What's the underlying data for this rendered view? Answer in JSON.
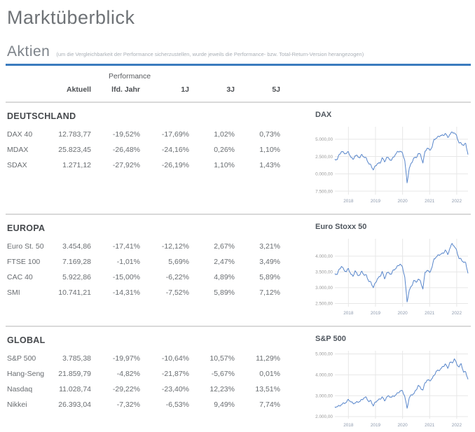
{
  "page": {
    "title": "Marktüberblick",
    "section_title": "Aktien",
    "section_note": "(um die Vergleichbarkeit der Performance sicherzustellen, wurde jeweils die Performance- bzw. Total-Return-Version herangezogen)"
  },
  "colors": {
    "accent_blue": "#3b7bbe",
    "line_blue": "#5886cb",
    "grid_line": "#e7e7e7",
    "y_label": "#9b9b9b",
    "x_label": "#8d99ad"
  },
  "table": {
    "header": {
      "performance": "Performance",
      "aktuell": "Aktuell",
      "lfd_jahr": "lfd. Jahr",
      "j1": "1J",
      "j3": "3J",
      "j5": "5J"
    },
    "sections": [
      {
        "title": "DEUTSCHLAND",
        "rows": [
          {
            "name": "DAX 40",
            "aktuell": "12.783,77",
            "lfd_jahr": "-19,52%",
            "j1": "-17,69%",
            "j3": "1,02%",
            "j5": "0,73%"
          },
          {
            "name": "MDAX",
            "aktuell": "25.823,45",
            "lfd_jahr": "-26,48%",
            "j1": "-24,16%",
            "j3": "0,26%",
            "j5": "1,10%"
          },
          {
            "name": "SDAX",
            "aktuell": "1.271,12",
            "lfd_jahr": "-27,92%",
            "j1": "-26,19%",
            "j3": "1,10%",
            "j5": "1,43%"
          }
        ]
      },
      {
        "title": "EUROPA",
        "rows": [
          {
            "name": "Euro St. 50",
            "aktuell": "3.454,86",
            "lfd_jahr": "-17,41%",
            "j1": "-12,12%",
            "j3": "2,67%",
            "j5": "3,21%"
          },
          {
            "name": "FTSE 100",
            "aktuell": "7.169,28",
            "lfd_jahr": "-1,01%",
            "j1": "5,69%",
            "j3": "2,47%",
            "j5": "3,49%"
          },
          {
            "name": "CAC 40",
            "aktuell": "5.922,86",
            "lfd_jahr": "-15,00%",
            "j1": "-6,22%",
            "j3": "4,89%",
            "j5": "5,89%"
          },
          {
            "name": "SMI",
            "aktuell": "10.741,21",
            "lfd_jahr": "-14,31%",
            "j1": "-7,52%",
            "j3": "5,89%",
            "j5": "7,12%"
          }
        ]
      },
      {
        "title": "GLOBAL",
        "rows": [
          {
            "name": "S&P 500",
            "aktuell": "3.785,38",
            "lfd_jahr": "-19,97%",
            "j1": "-10,64%",
            "j3": "10,57%",
            "j5": "11,29%"
          },
          {
            "name": "Hang-Seng",
            "aktuell": "21.859,79",
            "lfd_jahr": "-4,82%",
            "j1": "-21,87%",
            "j3": "-5,67%",
            "j5": "0,01%"
          },
          {
            "name": "Nasdaq",
            "aktuell": "11.028,74",
            "lfd_jahr": "-29,22%",
            "j1": "-23,40%",
            "j3": "12,23%",
            "j5": "13,51%"
          },
          {
            "name": "Nikkei",
            "aktuell": "26.393,04",
            "lfd_jahr": "-7,32%",
            "j1": "-6,53%",
            "j3": "9,49%",
            "j5": "7,74%"
          }
        ]
      }
    ]
  },
  "chart_data": [
    {
      "type": "line",
      "title": "DAX",
      "series_color": "#5886cb",
      "legend": "none",
      "grid": true,
      "x_start": "2017-07",
      "x_interval": "monthly",
      "ylim": [
        7000,
        16800
      ],
      "y_ticks": [
        {
          "value": 15000,
          "label": "15.000,00"
        },
        {
          "value": 12500,
          "label": "12.500,00"
        },
        {
          "value": 10000,
          "label": "10.000,00"
        },
        {
          "value": 7500,
          "label": "7.500,00"
        }
      ],
      "x_tick_labels": [
        "2018",
        "2019",
        "2020",
        "2021",
        "2022"
      ],
      "x_tick_indices": [
        6,
        18,
        30,
        42,
        54
      ],
      "values": [
        12118,
        12055,
        12829,
        13230,
        13024,
        12918,
        13189,
        12436,
        12097,
        12612,
        12604,
        12306,
        12806,
        12364,
        12247,
        11448,
        11257,
        10559,
        11173,
        11516,
        11526,
        12344,
        11727,
        12399,
        12189,
        11939,
        12428,
        12867,
        13236,
        13249,
        12982,
        11890,
        8700,
        10862,
        11587,
        12311,
        12313,
        12945,
        12761,
        11556,
        13291,
        13719,
        13433,
        13786,
        15008,
        15136,
        15421,
        15531,
        15544,
        15835,
        15261,
        15689,
        16030,
        15885,
        15471,
        14461,
        14415,
        14098,
        14388,
        12784
      ]
    },
    {
      "type": "line",
      "title": "Euro Stoxx 50",
      "series_color": "#5886cb",
      "legend": "none",
      "grid": true,
      "x_start": "2017-07",
      "x_interval": "monthly",
      "ylim": [
        2400,
        4550
      ],
      "y_ticks": [
        {
          "value": 4000,
          "label": "4.000,00"
        },
        {
          "value": 3500,
          "label": "3.500,00"
        },
        {
          "value": 3000,
          "label": "3.000,00"
        },
        {
          "value": 2500,
          "label": "2.500,00"
        }
      ],
      "x_tick_labels": [
        "2018",
        "2019",
        "2020",
        "2021",
        "2022"
      ],
      "x_tick_indices": [
        6,
        18,
        30,
        42,
        54
      ],
      "values": [
        3450,
        3421,
        3595,
        3674,
        3570,
        3504,
        3609,
        3439,
        3361,
        3537,
        3407,
        3396,
        3525,
        3393,
        3399,
        3198,
        3173,
        3001,
        3160,
        3298,
        3352,
        3515,
        3280,
        3474,
        3467,
        3427,
        3569,
        3604,
        3704,
        3745,
        3641,
        3329,
        2550,
        2928,
        3050,
        3234,
        3174,
        3273,
        3194,
        2958,
        3493,
        3553,
        3481,
        3636,
        3919,
        3974,
        4039,
        4064,
        4089,
        4196,
        4048,
        4251,
        4402,
        4298,
        4175,
        3924,
        3903,
        3803,
        3789,
        3455
      ]
    },
    {
      "type": "line",
      "title": "S&P 500",
      "series_color": "#5886cb",
      "legend": "none",
      "grid": true,
      "x_start": "2017-07",
      "x_interval": "monthly",
      "ylim": [
        1900,
        5150
      ],
      "y_ticks": [
        {
          "value": 5000,
          "label": "5.000,00"
        },
        {
          "value": 4000,
          "label": "4.000,00"
        },
        {
          "value": 3000,
          "label": "3.000,00"
        },
        {
          "value": 2000,
          "label": "2.000,00"
        }
      ],
      "x_tick_labels": [
        "2018",
        "2019",
        "2020",
        "2021",
        "2022"
      ],
      "x_tick_indices": [
        6,
        18,
        30,
        42,
        54
      ],
      "values": [
        2470,
        2472,
        2519,
        2575,
        2648,
        2674,
        2824,
        2714,
        2641,
        2648,
        2705,
        2718,
        2816,
        2902,
        2914,
        2712,
        2760,
        2507,
        2704,
        2784,
        2834,
        2946,
        2752,
        2942,
        2980,
        2926,
        2977,
        3038,
        3141,
        3231,
        3226,
        2954,
        2400,
        2912,
        3044,
        3100,
        3271,
        3500,
        3363,
        3270,
        3622,
        3756,
        3714,
        3811,
        3973,
        4181,
        4204,
        4298,
        4395,
        4523,
        4308,
        4605,
        4567,
        4766,
        4516,
        4374,
        4530,
        4132,
        4132,
        3785
      ]
    }
  ]
}
